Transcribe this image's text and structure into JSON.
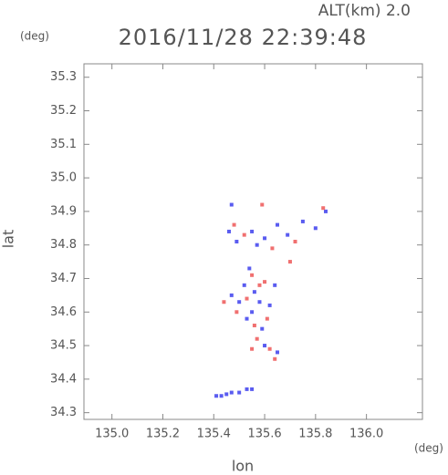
{
  "chart_data": {
    "type": "scatter",
    "title": "2016/11/28 22:39:48",
    "subtitle": "ALT(km) 2.0",
    "x_label": "lon",
    "y_label": "lat",
    "x_unit": "(deg)",
    "y_unit": "(deg)",
    "xlim": [
      134.89,
      136.22
    ],
    "ylim": [
      34.28,
      35.34
    ],
    "xticks": [
      {
        "value": 135.0,
        "label": "135.0"
      },
      135.2,
      135.4,
      135.6,
      135.8,
      {
        "value": 136.0,
        "label": "136.0"
      }
    ],
    "yticks": [
      34.3,
      34.4,
      34.5,
      34.6,
      34.7,
      34.8,
      34.9,
      {
        "value": 35.0,
        "label": "35.0"
      },
      35.1,
      35.2,
      35.3
    ],
    "series": [
      {
        "color": "#5a5cf0",
        "x": [
          135.41,
          135.43,
          135.45,
          135.47,
          135.5,
          135.53,
          135.55,
          135.47,
          135.46,
          135.49,
          135.55,
          135.6,
          135.65,
          135.69,
          135.75,
          135.8,
          135.84,
          135.57,
          135.54,
          135.52,
          135.56,
          135.5,
          135.47,
          135.55,
          135.58,
          135.62,
          135.64,
          135.59,
          135.53,
          135.6,
          135.65
        ],
        "values": [
          34.35,
          34.35,
          34.355,
          34.36,
          34.36,
          34.37,
          34.37,
          34.92,
          34.84,
          34.81,
          34.84,
          34.82,
          34.86,
          34.83,
          34.87,
          34.85,
          34.9,
          34.8,
          34.73,
          34.68,
          34.66,
          34.63,
          34.65,
          34.6,
          34.63,
          34.62,
          34.68,
          34.55,
          34.58,
          34.5,
          34.48
        ]
      },
      {
        "color": "#f07070",
        "x": [
          135.48,
          135.52,
          135.59,
          135.63,
          135.72,
          135.83,
          135.7,
          135.55,
          135.53,
          135.58,
          135.61,
          135.56,
          135.49,
          135.44,
          135.57,
          135.62,
          135.64,
          135.55,
          135.6
        ],
        "values": [
          34.86,
          34.83,
          34.92,
          34.79,
          34.81,
          34.91,
          34.75,
          34.71,
          34.64,
          34.68,
          34.58,
          34.56,
          34.6,
          34.63,
          34.52,
          34.49,
          34.46,
          34.49,
          34.69
        ]
      }
    ]
  }
}
